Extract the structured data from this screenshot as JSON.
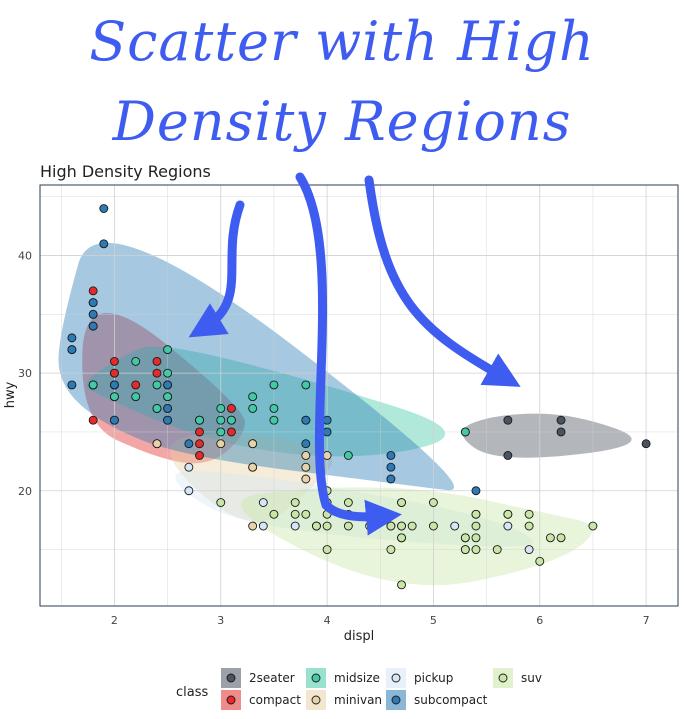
{
  "banner": {
    "line1": "Scatter with High",
    "line2": "Density Regions"
  },
  "chart_data": {
    "type": "scatter",
    "title": "High Density Regions",
    "xlabel": "displ",
    "ylabel": "hwy",
    "xlim": [
      1.3,
      7.3
    ],
    "ylim": [
      10.2,
      46
    ],
    "x_ticks": [
      2,
      3,
      4,
      5,
      6,
      7
    ],
    "y_ticks": [
      20,
      30,
      40
    ],
    "grid": true,
    "legend": {
      "title": "class",
      "placement": "bottom",
      "entries": [
        "2seater",
        "compact",
        "midsize",
        "minivan",
        "pickup",
        "subcompact",
        "suv"
      ]
    },
    "colors": {
      "2seater": "#4a5360",
      "compact": "#e32b2b",
      "midsize": "#43c9a6",
      "minivan": "#e8d2a8",
      "pickup": "#d6e6f6",
      "subcompact": "#2c7bb6",
      "suv": "#c9e6a6"
    },
    "series": [
      {
        "name": "2seater",
        "x": [
          5.3,
          5.7,
          5.7,
          6.2,
          6.2,
          7.0
        ],
        "y": [
          25,
          26,
          23,
          26,
          25,
          24
        ]
      },
      {
        "name": "compact",
        "x": [
          1.8,
          1.8,
          2.0,
          2.0,
          2.8,
          2.8,
          3.1,
          1.8,
          2.0,
          2.0,
          2.8,
          3.1,
          2.8,
          2.4,
          2.4,
          3.1,
          2.5,
          1.8,
          1.8,
          2.0,
          2.0,
          2.8,
          2.4,
          2.5,
          2.2,
          2.4
        ],
        "y": [
          29,
          29,
          31,
          30,
          26,
          26,
          27,
          26,
          28,
          26,
          24,
          25,
          25,
          31,
          30,
          26,
          26,
          37,
          35,
          29,
          30,
          23,
          27,
          28,
          29,
          24
        ]
      },
      {
        "name": "midsize",
        "x": [
          1.8,
          2.0,
          2.0,
          2.8,
          3.1,
          2.5,
          2.5,
          3.0,
          3.5,
          3.5,
          3.5,
          3.3,
          3.3,
          3.8,
          3.8,
          2.4,
          3.0,
          4.2,
          2.5,
          2.5,
          2.2,
          2.2,
          2.4,
          3.0,
          2.5,
          5.3
        ],
        "y": [
          29,
          29,
          28,
          26,
          26,
          32,
          30,
          27,
          27,
          26,
          29,
          27,
          28,
          29,
          26,
          27,
          25,
          23,
          28,
          29,
          31,
          28,
          29,
          26,
          27,
          25
        ]
      },
      {
        "name": "minivan",
        "x": [
          2.4,
          3.0,
          3.3,
          3.3,
          3.3,
          3.3,
          3.3,
          3.8,
          3.8,
          3.8,
          4.0
        ],
        "y": [
          24,
          24,
          22,
          22,
          24,
          24,
          17,
          22,
          21,
          23,
          23
        ]
      },
      {
        "name": "pickup",
        "x": [
          2.7,
          2.7,
          3.4,
          3.4,
          3.7,
          3.9,
          4.7,
          4.7,
          4.7,
          5.2,
          5.7,
          5.9
        ],
        "y": [
          20,
          22,
          19,
          17,
          17,
          17,
          17,
          16,
          19,
          17,
          17,
          15
        ]
      },
      {
        "name": "subcompact",
        "x": [
          1.6,
          1.6,
          1.6,
          1.6,
          1.9,
          1.9,
          1.8,
          1.8,
          1.8,
          1.8,
          1.8,
          2.5,
          2.5,
          2.7,
          3.8,
          4.0,
          4.6,
          4.6,
          5.4,
          3.8,
          4.0,
          2.0,
          2.0,
          2.5,
          4.6
        ],
        "y": [
          33,
          32,
          32,
          29,
          44,
          41,
          36,
          36,
          34,
          35,
          34,
          26,
          27,
          24,
          26,
          26,
          23,
          22,
          20,
          24,
          25,
          29,
          26,
          29,
          21
        ]
      },
      {
        "name": "suv",
        "x": [
          3.7,
          3.7,
          3.9,
          3.9,
          4.0,
          4.0,
          4.6,
          5.0,
          4.7,
          4.7,
          4.7,
          4.2,
          5.3,
          5.3,
          5.7,
          6.1,
          6.5,
          4.6,
          5.4,
          5.4,
          4.0,
          4.0,
          4.6,
          5.0,
          4.2,
          5.4,
          3.0,
          4.0,
          5.6,
          5.9,
          3.5,
          3.8,
          4.7,
          5.3,
          5.3,
          5.4,
          4.4,
          4.2,
          4.8,
          6.0,
          6.2,
          5.9,
          5.7,
          5.4
        ],
        "y": [
          18,
          19,
          17,
          17,
          17,
          15,
          15,
          17,
          17,
          16,
          19,
          19,
          15,
          16,
          18,
          16,
          17,
          17,
          15,
          16,
          18,
          19,
          17,
          19,
          18,
          18,
          19,
          20,
          15,
          17,
          18,
          18,
          12,
          15,
          16,
          18,
          17,
          17,
          17,
          14,
          16,
          18,
          18,
          17
        ]
      }
    ]
  }
}
